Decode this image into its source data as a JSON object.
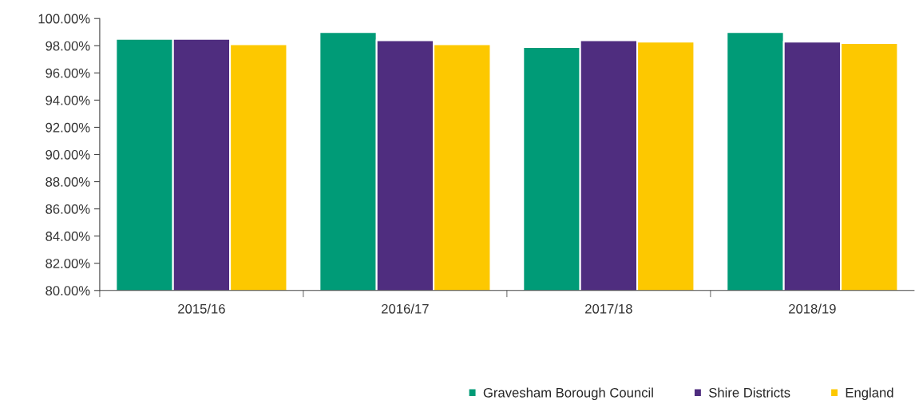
{
  "chart_data": {
    "type": "bar",
    "categories": [
      "2015/16",
      "2016/17",
      "2017/18",
      "2018/19"
    ],
    "series": [
      {
        "name": "Gravesham Borough Council",
        "color": "#009b77",
        "values": [
          98.5,
          99.0,
          97.9,
          99.0
        ]
      },
      {
        "name": "Shire Districts",
        "color": "#4f2d7f",
        "values": [
          98.5,
          98.4,
          98.4,
          98.3
        ]
      },
      {
        "name": "England",
        "color": "#fdc800",
        "values": [
          98.1,
          98.1,
          98.3,
          98.2
        ]
      }
    ],
    "ylim": [
      80,
      100
    ],
    "yticks": [
      {
        "value": 80,
        "label": "80.00%"
      },
      {
        "value": 82,
        "label": "82.00%"
      },
      {
        "value": 84,
        "label": "84.00%"
      },
      {
        "value": 86,
        "label": "86.00%"
      },
      {
        "value": 88,
        "label": "88.00%"
      },
      {
        "value": 90,
        "label": "90.00%"
      },
      {
        "value": 92,
        "label": "92.00%"
      },
      {
        "value": 94,
        "label": "94.00%"
      },
      {
        "value": 96,
        "label": "96.00%"
      },
      {
        "value": 98,
        "label": "98.00%"
      },
      {
        "value": 100,
        "label": "100.00%"
      }
    ],
    "grid": false,
    "legend": "bottom right"
  }
}
